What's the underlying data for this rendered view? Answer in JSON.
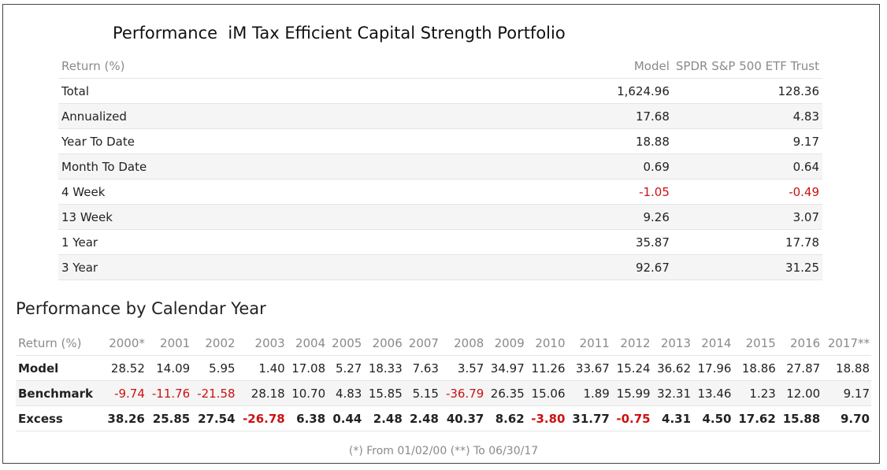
{
  "title": "Performance  iM Tax Efficient Capital Strength Portfolio",
  "summary": {
    "headers": [
      "Return (%)",
      "Model",
      "SPDR S&P 500 ETF Trust"
    ],
    "rows": [
      {
        "label": "Total",
        "model": "1,624.96",
        "bench": "128.36"
      },
      {
        "label": "Annualized",
        "model": "17.68",
        "bench": "4.83"
      },
      {
        "label": "Year To Date",
        "model": "18.88",
        "bench": "9.17"
      },
      {
        "label": "Month To Date",
        "model": "0.69",
        "bench": "0.64"
      },
      {
        "label": "4 Week",
        "model": "-1.05",
        "bench": "-0.49"
      },
      {
        "label": "13 Week",
        "model": "9.26",
        "bench": "3.07"
      },
      {
        "label": "1 Year",
        "model": "35.87",
        "bench": "17.78"
      },
      {
        "label": "3 Year",
        "model": "92.67",
        "bench": "31.25"
      }
    ]
  },
  "calendar": {
    "title": "Performance by Calendar Year",
    "header_label": "Return (%)",
    "years": [
      "2000*",
      "2001",
      "2002",
      "2003",
      "2004",
      "2005",
      "2006",
      "2007",
      "2008",
      "2009",
      "2010",
      "2011",
      "2012",
      "2013",
      "2014",
      "2015",
      "2016",
      "2017**"
    ],
    "rows": [
      {
        "label": "Model",
        "values": [
          "28.52",
          "14.09",
          "5.95",
          "1.40",
          "17.08",
          "5.27",
          "18.33",
          "7.63",
          "3.57",
          "34.97",
          "11.26",
          "33.67",
          "15.24",
          "36.62",
          "17.96",
          "18.86",
          "27.87",
          "18.88"
        ]
      },
      {
        "label": "Benchmark",
        "values": [
          "-9.74",
          "-11.76",
          "-21.58",
          "28.18",
          "10.70",
          "4.83",
          "15.85",
          "5.15",
          "-36.79",
          "26.35",
          "15.06",
          "1.89",
          "15.99",
          "32.31",
          "13.46",
          "1.23",
          "12.00",
          "9.17"
        ]
      },
      {
        "label": "Excess",
        "values": [
          "38.26",
          "25.85",
          "27.54",
          "-26.78",
          "6.38",
          "0.44",
          "2.48",
          "2.48",
          "40.37",
          "8.62",
          "-3.80",
          "31.77",
          "-0.75",
          "4.31",
          "4.50",
          "17.62",
          "15.88",
          "9.70"
        ]
      }
    ]
  },
  "footnote": "(*) From 01/02/00  (**) To 06/30/17",
  "colors": {
    "negative": "#cc1111",
    "muted": "#8a8a8a",
    "row_alt": "#f5f5f5"
  }
}
